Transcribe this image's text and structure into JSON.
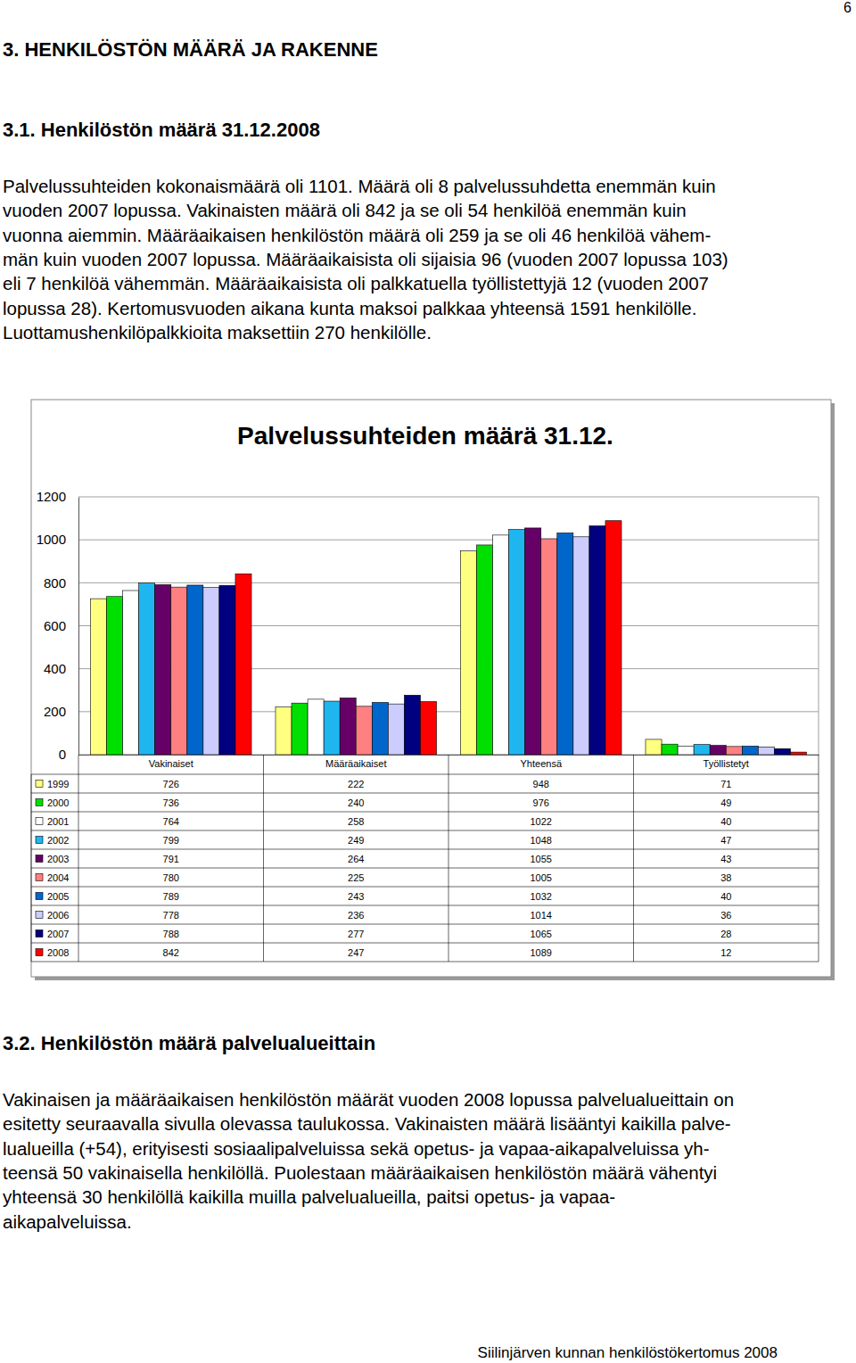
{
  "page_number": "6",
  "heading": "3. HENKILÖSTÖN MÄÄRÄ JA RAKENNE",
  "section_1": {
    "title": "3.1. Henkilöstön määrä 31.12.2008",
    "lines": [
      "Palvelussuhteiden kokonaismäärä oli 1101. Määrä oli 8 palvelussuhdetta enemmän kuin",
      "vuoden 2007 lopussa. Vakinaisten määrä oli 842 ja se oli 54 henkilöä enemmän kuin",
      "vuonna aiemmin. Määräaikaisen henkilöstön määrä oli 259 ja se oli 46 henkilöä vähem-",
      "män kuin vuoden 2007 lopussa. Määräaikaisista oli sijaisia 96 (vuoden 2007 lopussa 103)",
      "eli 7 henkilöä vähemmän. Määräaikaisista oli palkkatuella työllistettyjä 12 (vuoden 2007",
      "lopussa 28). Kertomusvuoden aikana kunta maksoi palkkaa yhteensä 1591 henkilölle.",
      "Luottamushenkilöpalkkioita maksettiin 270 henkilölle."
    ]
  },
  "chart_data": {
    "type": "bar",
    "title": "Palvelussuhteiden määrä 31.12.",
    "categories": [
      "Vakinaiset",
      "Määräaikaiset",
      "Yhteensä",
      "Työllistetyt"
    ],
    "series": [
      {
        "name": "1999",
        "color": "#ffff80",
        "values": [
          726,
          222,
          948,
          71
        ]
      },
      {
        "name": "2000",
        "color": "#00e000",
        "values": [
          736,
          240,
          976,
          49
        ]
      },
      {
        "name": "2001",
        "color": "#ffffff",
        "values": [
          764,
          258,
          1022,
          40
        ]
      },
      {
        "name": "2002",
        "color": "#1fb6f0",
        "values": [
          799,
          249,
          1048,
          47
        ]
      },
      {
        "name": "2003",
        "color": "#660066",
        "values": [
          791,
          264,
          1055,
          43
        ]
      },
      {
        "name": "2004",
        "color": "#ff8080",
        "values": [
          780,
          225,
          1005,
          38
        ]
      },
      {
        "name": "2005",
        "color": "#0066cc",
        "values": [
          789,
          243,
          1032,
          40
        ]
      },
      {
        "name": "2006",
        "color": "#ccccff",
        "values": [
          778,
          236,
          1014,
          36
        ]
      },
      {
        "name": "2007",
        "color": "#000080",
        "values": [
          788,
          277,
          1065,
          28
        ]
      },
      {
        "name": "2008",
        "color": "#ff0000",
        "values": [
          842,
          247,
          1089,
          12
        ]
      }
    ],
    "ylim": [
      0,
      1200
    ],
    "yticks": [
      0,
      200,
      400,
      600,
      800,
      1000,
      1200
    ],
    "grid": true,
    "legend": "bottom"
  },
  "section_2": {
    "title": "3.2. Henkilöstön määrä palvelualueittain",
    "lines": [
      "Vakinaisen ja määräaikaisen henkilöstön määrät vuoden 2008 lopussa palvelualueittain on",
      "esitetty seuraavalla sivulla olevassa taulukossa. Vakinaisten määrä lisääntyi kaikilla palve-",
      "lualueilla (+54), erityisesti sosiaalipalveluissa sekä opetus- ja vapaa-aikapalveluissa yh-",
      "teensä 50 vakinaisella henkilöllä. Puolestaan määräaikaisen henkilöstön määrä vähentyi",
      "yhteensä 30 henkilöllä kaikilla muilla palvelualueilla, paitsi opetus- ja vapaa-",
      "aikapalveluissa."
    ]
  },
  "footer": "Siilinjärven kunnan henkilöstökertomus 2008"
}
